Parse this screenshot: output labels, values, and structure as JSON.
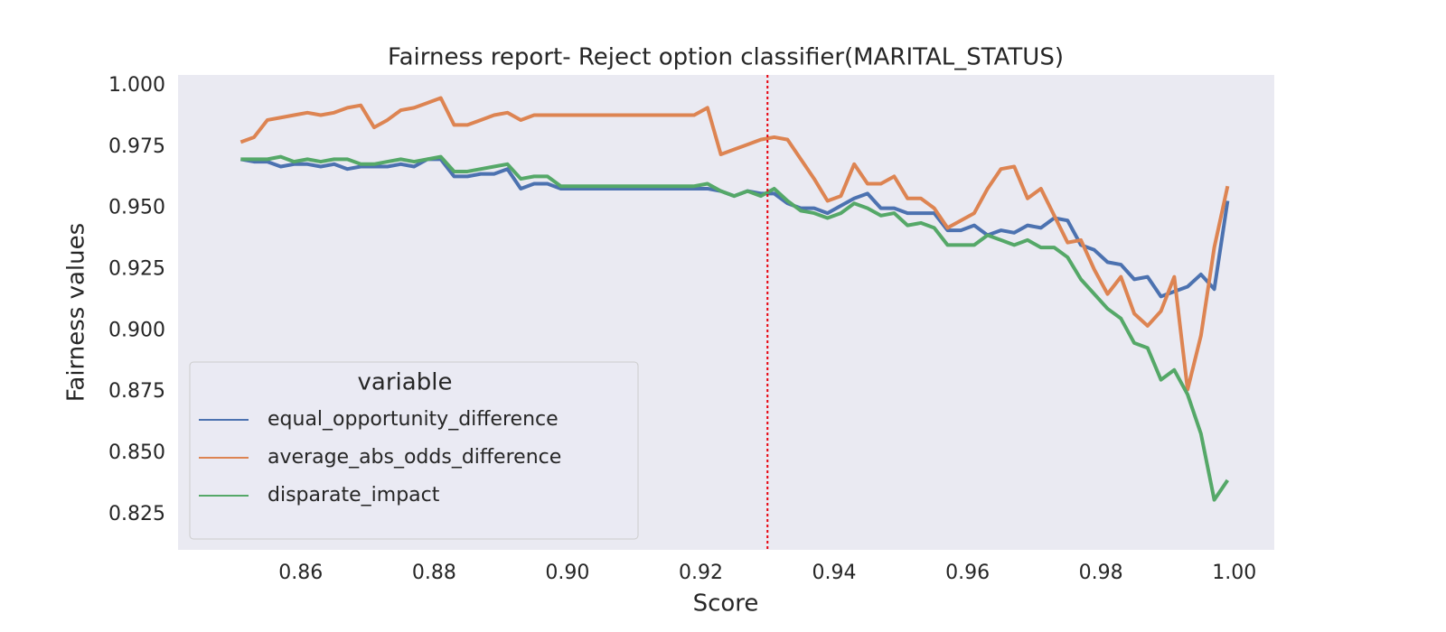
{
  "chart_data": {
    "type": "line",
    "title": "Fairness report- Reject option classifier(MARITAL_STATUS)",
    "xlabel": "Score",
    "ylabel": "Fairness values",
    "x": [
      0.851,
      0.853,
      0.855,
      0.857,
      0.859,
      0.861,
      0.863,
      0.865,
      0.867,
      0.869,
      0.871,
      0.873,
      0.875,
      0.877,
      0.879,
      0.881,
      0.883,
      0.885,
      0.887,
      0.889,
      0.891,
      0.893,
      0.895,
      0.897,
      0.899,
      0.901,
      0.903,
      0.905,
      0.907,
      0.909,
      0.911,
      0.913,
      0.915,
      0.917,
      0.919,
      0.921,
      0.923,
      0.925,
      0.927,
      0.929,
      0.931,
      0.933,
      0.935,
      0.937,
      0.939,
      0.941,
      0.943,
      0.945,
      0.947,
      0.949,
      0.951,
      0.953,
      0.955,
      0.957,
      0.959,
      0.961,
      0.963,
      0.965,
      0.967,
      0.969,
      0.971,
      0.973,
      0.975,
      0.977,
      0.979,
      0.981,
      0.983,
      0.985,
      0.987,
      0.989,
      0.991,
      0.993,
      0.995,
      0.997,
      0.999
    ],
    "series": [
      {
        "name": "equal_opportunity_difference",
        "color": "#4c72b0",
        "values": [
          0.97,
          0.969,
          0.969,
          0.967,
          0.968,
          0.968,
          0.967,
          0.968,
          0.966,
          0.967,
          0.967,
          0.967,
          0.968,
          0.967,
          0.97,
          0.97,
          0.963,
          0.963,
          0.964,
          0.964,
          0.966,
          0.958,
          0.96,
          0.96,
          0.958,
          0.958,
          0.958,
          0.958,
          0.958,
          0.958,
          0.958,
          0.958,
          0.958,
          0.958,
          0.958,
          0.958,
          0.957,
          0.955,
          0.957,
          0.956,
          0.956,
          0.952,
          0.95,
          0.95,
          0.948,
          0.951,
          0.954,
          0.956,
          0.95,
          0.95,
          0.948,
          0.948,
          0.948,
          0.941,
          0.941,
          0.943,
          0.939,
          0.941,
          0.94,
          0.943,
          0.942,
          0.946,
          0.945,
          0.935,
          0.933,
          0.928,
          0.927,
          0.921,
          0.922,
          0.914,
          0.916,
          0.918,
          0.923,
          0.917,
          0.953
        ]
      },
      {
        "name": "average_abs_odds_difference",
        "color": "#dd8452",
        "values": [
          0.977,
          0.979,
          0.986,
          0.987,
          0.988,
          0.989,
          0.988,
          0.989,
          0.991,
          0.992,
          0.983,
          0.986,
          0.99,
          0.991,
          0.993,
          0.995,
          0.984,
          0.984,
          0.986,
          0.988,
          0.989,
          0.986,
          0.988,
          0.988,
          0.988,
          0.988,
          0.988,
          0.988,
          0.988,
          0.988,
          0.988,
          0.988,
          0.988,
          0.988,
          0.988,
          0.991,
          0.972,
          0.974,
          0.976,
          0.978,
          0.979,
          0.978,
          0.97,
          0.962,
          0.953,
          0.955,
          0.968,
          0.96,
          0.96,
          0.963,
          0.954,
          0.954,
          0.95,
          0.942,
          0.945,
          0.948,
          0.958,
          0.966,
          0.967,
          0.954,
          0.958,
          0.947,
          0.936,
          0.937,
          0.925,
          0.915,
          0.922,
          0.907,
          0.902,
          0.908,
          0.922,
          0.876,
          0.898,
          0.934,
          0.959
        ]
      },
      {
        "name": "disparate_impact",
        "color": "#55a868",
        "values": [
          0.97,
          0.97,
          0.97,
          0.971,
          0.969,
          0.97,
          0.969,
          0.97,
          0.97,
          0.968,
          0.968,
          0.969,
          0.97,
          0.969,
          0.97,
          0.971,
          0.965,
          0.965,
          0.966,
          0.967,
          0.968,
          0.962,
          0.963,
          0.963,
          0.959,
          0.959,
          0.959,
          0.959,
          0.959,
          0.959,
          0.959,
          0.959,
          0.959,
          0.959,
          0.959,
          0.96,
          0.957,
          0.955,
          0.957,
          0.955,
          0.958,
          0.953,
          0.949,
          0.948,
          0.946,
          0.948,
          0.952,
          0.95,
          0.947,
          0.948,
          0.943,
          0.944,
          0.942,
          0.935,
          0.935,
          0.935,
          0.939,
          0.937,
          0.935,
          0.937,
          0.934,
          0.934,
          0.93,
          0.921,
          0.915,
          0.909,
          0.905,
          0.895,
          0.893,
          0.88,
          0.884,
          0.874,
          0.858,
          0.831,
          0.839
        ]
      }
    ],
    "xlim": [
      0.8416,
      1.006
    ],
    "ylim": [
      0.8106,
      1.0044
    ],
    "xticks": [
      0.86,
      0.88,
      {
        "value": 0.9,
        "label": "0.90"
      },
      0.92,
      0.94,
      0.96,
      0.98,
      {
        "value": 1,
        "label": "1.00"
      }
    ],
    "yticks": [
      0.825,
      {
        "value": 0.85,
        "label": "0.850"
      },
      0.875,
      {
        "value": 0.9,
        "label": "0.900"
      },
      0.925,
      {
        "value": 0.95,
        "label": "0.950"
      },
      0.975,
      {
        "value": 1,
        "label": "1.000"
      }
    ],
    "grid": false,
    "legend_title": "variable",
    "legend_loc": "lower left",
    "vlines": [
      0.93
    ],
    "vline_color": "#e8000b"
  }
}
